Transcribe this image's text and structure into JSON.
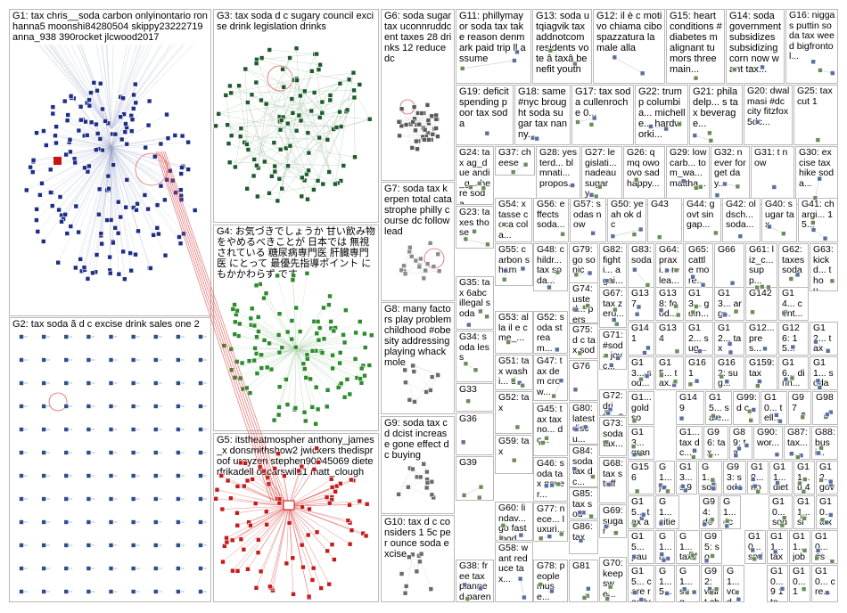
{
  "groups": [
    {
      "id": "G1",
      "text": "G1: tax chris__soda carbon onlyinontario ronhanna5 moonshi84280504 skippy23222719 anna_938 390rocket jlcwood2017",
      "color": "#1e2e86"
    },
    {
      "id": "G2",
      "text": "G2: tax soda ã d c excise drink sales one 2",
      "color": "#2d4e8a"
    },
    {
      "id": "G3",
      "text": "G3: tax soda d c sugary council excise drink legislation drinks",
      "color": "#1d5a2c"
    },
    {
      "id": "G4",
      "text": "G4: お気づきでしょうか 甘い飲み物をやめるべきことが 日本では 無視されている 糖尿病専門医 肝臓専門医 にとって 最優先指導ポイント にもかかわらず です",
      "color": "#2d8a2d"
    },
    {
      "id": "G5",
      "text": "G5: itstheatmospher anthony_james_x donsmithshow2 jwickers thedisproof ureyzen stephen90045069 dieterfrikadell oscarswild1 matt_clough",
      "color": "#d22020"
    },
    {
      "id": "G6",
      "text": "G6: soda sugar tax uconnruddcent taxes 28 drinks 12 reduce dc",
      "color": "#444444"
    },
    {
      "id": "G7",
      "text": "G7: soda tax kerpen total catastrophe philly course dc follow lead",
      "color": "#aaaaaa"
    },
    {
      "id": "G8",
      "text": "G8: many factors play problem childhood #obesity addressing playing whack mole",
      "color": "#777777"
    },
    {
      "id": "G9",
      "text": "G9: soda tax c d dcist increase gone effect dc buying",
      "color": "#777777"
    },
    {
      "id": "G10",
      "text": "G10: tax d c considers 1 5c per ounce soda excise",
      "color": "#777777"
    },
    {
      "id": "G11",
      "text": "G11: phillymayor soda tax take reason denmark paid trip ll assume",
      "color": "#777777"
    },
    {
      "id": "G13",
      "text": "G13: soda utqiagvik tax addnotcom residents vote â taxâ benefit youth",
      "color": "#777777"
    },
    {
      "id": "G12",
      "text": "G12: il è c motivo chiama cibo spazzatura la male alla",
      "color": "#777777"
    },
    {
      "id": "G15",
      "text": "G15: heart conditions #diabetes malignant tumors three main...",
      "color": "#777777"
    },
    {
      "id": "G14",
      "text": "G14: soda government subsidizes subsidizing corn now want tax...",
      "color": "#777777"
    },
    {
      "id": "G16",
      "text": "G16: niggas puttin soda tax weed bigfrontol...",
      "color": "#777777"
    },
    {
      "id": "G19",
      "text": "G19: deficit spending poor tax soda",
      "color": "#777777"
    },
    {
      "id": "G18",
      "text": "G18: same #nyc brought soda sugar tax nanny...",
      "color": "#777777"
    },
    {
      "id": "G17",
      "text": "G17: tax soda cullenroche 0...",
      "color": "#777777"
    },
    {
      "id": "G22",
      "text": "G22: trump columbia... michelle... hardworki...",
      "color": "#777777"
    },
    {
      "id": "G21",
      "text": "G21: philadelp... s tax beverage...",
      "color": "#777777"
    },
    {
      "id": "G20",
      "text": "G20: dwalmasi #dc city fitzfox5dc...",
      "color": "#777777"
    },
    {
      "id": "G25",
      "text": "G25: tax cut 1",
      "color": "#777777"
    },
    {
      "id": "G24",
      "text": "G24: tax ag_due andi_g... here soda...",
      "color": "#777777"
    },
    {
      "id": "G37",
      "text": "G37: cheese",
      "color": "#777777"
    },
    {
      "id": "G28",
      "text": "G28: yesterd... blmnati... propos...",
      "color": "#777777"
    },
    {
      "id": "G27",
      "text": "G27: legislati... nadeau sugary...",
      "color": "#777777"
    },
    {
      "id": "G26",
      "text": "G26: qmq owo ovo sad happy...",
      "color": "#777777"
    },
    {
      "id": "G29",
      "text": "G29: lowcarb... tom_wa... mattha...",
      "color": "#777777"
    },
    {
      "id": "G32",
      "text": "G32: never forget day...",
      "color": "#777777"
    },
    {
      "id": "G31",
      "text": "G31: t now",
      "color": "#777777"
    },
    {
      "id": "G30",
      "text": "G30: excise tax hike soda...",
      "color": "#777777"
    },
    {
      "id": "G54",
      "text": "G54: x tasse coca cola...",
      "color": "#777777"
    },
    {
      "id": "G56",
      "text": "G56: effects soda...",
      "color": "#777777"
    },
    {
      "id": "G57",
      "text": "G57: sodas now",
      "color": "#777777"
    },
    {
      "id": "G50",
      "text": "G50: yeah ok dc",
      "color": "#777777"
    },
    {
      "id": "G43",
      "text": "G43",
      "color": "#777777"
    },
    {
      "id": "G44",
      "text": "G44: govt singap...",
      "color": "#777777"
    },
    {
      "id": "G42",
      "text": "G42: oldsch... soda...",
      "color": "#777777"
    },
    {
      "id": "G40",
      "text": "G40: sugar tax",
      "color": "#777777"
    },
    {
      "id": "G41",
      "text": "G41: chargi... 15...",
      "color": "#777777"
    },
    {
      "id": "G23",
      "text": "G23: taxes those",
      "color": "#777777"
    },
    {
      "id": "G55",
      "text": "G55: carbon sham",
      "color": "#777777"
    },
    {
      "id": "G48",
      "text": "G48: childr... tax soda...",
      "color": "#777777"
    },
    {
      "id": "G79",
      "text": "G79: go sonic",
      "color": "#777777"
    },
    {
      "id": "G82",
      "text": "G82: fighti... agai...",
      "color": "#777777"
    },
    {
      "id": "G83",
      "text": "G83: soda",
      "color": "#777777"
    },
    {
      "id": "G64",
      "text": "G64: praxi... relea...",
      "color": "#777777"
    },
    {
      "id": "G65",
      "text": "G65: cattle more...",
      "color": "#777777"
    },
    {
      "id": "G66",
      "text": "G66",
      "color": "#777777"
    },
    {
      "id": "G61",
      "text": "G61: liz_c... supp...",
      "color": "#777777"
    },
    {
      "id": "G62",
      "text": "G62: taxes soda",
      "color": "#777777"
    },
    {
      "id": "G63",
      "text": "G63: kickd... thou...",
      "color": "#777777"
    },
    {
      "id": "G35",
      "text": "G35: tax 6abc illegal soda",
      "color": "#777777"
    },
    {
      "id": "G74",
      "text": "G74: usted... perso...",
      "color": "#777777"
    },
    {
      "id": "G67",
      "text": "G67: tax zero...",
      "color": "#777777"
    },
    {
      "id": "G137",
      "text": "G137",
      "color": "#777777"
    },
    {
      "id": "G138",
      "text": "G138: food...",
      "color": "#777777"
    },
    {
      "id": "G13x",
      "text": "G13... goin...",
      "color": "#777777"
    },
    {
      "id": "G13y",
      "text": "G13... arg...",
      "color": "#777777"
    },
    {
      "id": "G142",
      "text": "G142",
      "color": "#777777"
    },
    {
      "id": "G14x",
      "text": "G14... cont...",
      "color": "#777777"
    },
    {
      "id": "G53",
      "text": "G53: alla il e cme_...",
      "color": "#777777"
    },
    {
      "id": "G52",
      "text": "G52: soda stream...",
      "color": "#777777"
    },
    {
      "id": "G75",
      "text": "G75: d c tax soda...",
      "color": "#777777"
    },
    {
      "id": "G141",
      "text": "G141",
      "color": "#777777"
    },
    {
      "id": "G134",
      "text": "G134",
      "color": "#777777"
    },
    {
      "id": "G12x",
      "text": "G12... sug...",
      "color": "#777777"
    },
    {
      "id": "G12y",
      "text": "G12... tax",
      "color": "#777777"
    },
    {
      "id": "G12z",
      "text": "G12... pres...",
      "color": "#777777"
    },
    {
      "id": "G126",
      "text": "G126: 1 5...",
      "color": "#777777"
    },
    {
      "id": "G12w",
      "text": "G12... tax",
      "color": "#777777"
    },
    {
      "id": "G34",
      "text": "G34: soda less",
      "color": "#777777"
    },
    {
      "id": "G51",
      "text": "G51: tax washi... d c...",
      "color": "#777777"
    },
    {
      "id": "G71",
      "text": "G71: #soda joyc...",
      "color": "#777777"
    },
    {
      "id": "G13a",
      "text": "G13... sod...",
      "color": "#777777"
    },
    {
      "id": "G15a",
      "text": "G15... tax...",
      "color": "#777777"
    },
    {
      "id": "G161",
      "text": "G161",
      "color": "#777777"
    },
    {
      "id": "G162",
      "text": "G162: sug...",
      "color": "#777777"
    },
    {
      "id": "G159",
      "text": "G159: tax",
      "color": "#777777"
    },
    {
      "id": "G16a",
      "text": "G16... dinn...",
      "color": "#777777"
    },
    {
      "id": "G11a",
      "text": "G11... soda",
      "color": "#777777"
    },
    {
      "id": "G33",
      "text": "G33",
      "color": "#777777"
    },
    {
      "id": "G47",
      "text": "G47: tax dem crow...",
      "color": "#777777"
    },
    {
      "id": "G76",
      "text": "G76",
      "color": "#777777"
    },
    {
      "id": "G72",
      "text": "G72: drin... out",
      "color": "#777777"
    },
    {
      "id": "G1a",
      "text": "G1... gold sou...",
      "color": "#777777"
    },
    {
      "id": "G149",
      "text": "G149",
      "color": "#777777"
    },
    {
      "id": "G15b",
      "text": "G15... sale...",
      "color": "#777777"
    },
    {
      "id": "G99",
      "text": "G99: d c",
      "color": "#777777"
    },
    {
      "id": "G10a",
      "text": "G10... tell...",
      "color": "#777777"
    },
    {
      "id": "G97",
      "text": "G97",
      "color": "#777777"
    },
    {
      "id": "G98",
      "text": "G98",
      "color": "#777777"
    },
    {
      "id": "G52b",
      "text": "G52: tax",
      "color": "#777777"
    },
    {
      "id": "G45",
      "text": "G45: tax taxno... d c...",
      "color": "#777777"
    },
    {
      "id": "G80",
      "text": "G80: latest discu...",
      "color": "#777777"
    },
    {
      "id": "G73",
      "text": "G73: soda tax...",
      "color": "#777777"
    },
    {
      "id": "G13b",
      "text": "G13... grant",
      "color": "#777777"
    },
    {
      "id": "G1b",
      "text": "G1... tax d c...",
      "color": "#777777"
    },
    {
      "id": "G96",
      "text": "G96: tax...",
      "color": "#777777"
    },
    {
      "id": "G89",
      "text": "G89: tax...",
      "color": "#777777"
    },
    {
      "id": "G90",
      "text": "G90: wor...",
      "color": "#777777"
    },
    {
      "id": "G87",
      "text": "G87: tax...",
      "color": "#777777"
    },
    {
      "id": "G88",
      "text": "G88: busi...",
      "color": "#777777"
    },
    {
      "id": "G36",
      "text": "G36",
      "color": "#777777"
    },
    {
      "id": "G59",
      "text": "G59: tax",
      "color": "#777777"
    },
    {
      "id": "G84",
      "text": "G84: soda tax dc...",
      "color": "#777777"
    },
    {
      "id": "G156",
      "text": "G156",
      "color": "#777777"
    },
    {
      "id": "G1c",
      "text": "G1... je et co...",
      "color": "#777777"
    },
    {
      "id": "G13c",
      "text": "G13... s 95",
      "color": "#777777"
    },
    {
      "id": "G1d",
      "text": "G1... soda",
      "color": "#777777"
    },
    {
      "id": "G93",
      "text": "G93: sodau onc...",
      "color": "#777777"
    },
    {
      "id": "G10b",
      "text": "G10... now 9...",
      "color": "#777777"
    },
    {
      "id": "G11b",
      "text": "G11... diet soda",
      "color": "#777777"
    },
    {
      "id": "G11c",
      "text": "G11... u 4 writ...",
      "color": "#777777"
    },
    {
      "id": "G12v",
      "text": "G12... gov 1 4...",
      "color": "#777777"
    },
    {
      "id": "G46",
      "text": "G46: soda tax gover...",
      "color": "#777777"
    },
    {
      "id": "G68",
      "text": "G68: tax stuff",
      "color": "#777777"
    },
    {
      "id": "G39",
      "text": "G39",
      "color": "#777777"
    },
    {
      "id": "G85",
      "text": "G85: tax soda...",
      "color": "#777777"
    },
    {
      "id": "G15c",
      "text": "G15... tax ahe...",
      "color": "#777777"
    },
    {
      "id": "G1e",
      "text": "G1... cities nee...",
      "color": "#777777"
    },
    {
      "id": "G94",
      "text": "G94: dc",
      "color": "#777777"
    },
    {
      "id": "G1f",
      "text": "G1... dc",
      "color": "#777777"
    },
    {
      "id": "G10c",
      "text": "G10... soda",
      "color": "#777777"
    },
    {
      "id": "G11d",
      "text": "G11... sim... taxe...",
      "color": "#777777"
    },
    {
      "id": "G10d",
      "text": "G10... tax swit...",
      "color": "#777777"
    },
    {
      "id": "G60",
      "text": "G60: lindav... go fast food...",
      "color": "#777777"
    },
    {
      "id": "G69",
      "text": "G69: sugar",
      "color": "#777777"
    },
    {
      "id": "G77",
      "text": "G77: nece... luxuri...",
      "color": "#777777"
    },
    {
      "id": "G86",
      "text": "G86: tax",
      "color": "#777777"
    },
    {
      "id": "G15d",
      "text": "G15... paul... sur...",
      "color": "#777777"
    },
    {
      "id": "G1g",
      "text": "G1... 80...",
      "color": "#777777"
    },
    {
      "id": "G1h",
      "text": "G1... tax fast...",
      "color": "#777777"
    },
    {
      "id": "G95",
      "text": "G95: sou... #p...",
      "color": "#777777"
    },
    {
      "id": "G10e",
      "text": "G10... soda afic...",
      "color": "#777777"
    },
    {
      "id": "G11e",
      "text": "G11... tax spe...",
      "color": "#777777"
    },
    {
      "id": "G11f",
      "text": "G11... jobs dan...",
      "color": "#777777"
    },
    {
      "id": "G10f",
      "text": "G10... #so... #dc...",
      "color": "#777777"
    },
    {
      "id": "G38",
      "text": "G38: free tax planned parent...",
      "color": "#777777"
    },
    {
      "id": "G58",
      "text": "G58: want reduce tax...",
      "color": "#777777"
    },
    {
      "id": "G78",
      "text": "G78: people muse...",
      "color": "#777777"
    },
    {
      "id": "G81",
      "text": "G81",
      "color": "#777777"
    },
    {
      "id": "G70",
      "text": "G70: keep swe...",
      "color": "#777777"
    },
    {
      "id": "G15e",
      "text": "G15... care really",
      "color": "#777777"
    },
    {
      "id": "G1i",
      "text": "G1... 5...",
      "color": "#777777"
    },
    {
      "id": "G1j",
      "text": "G1... sug...",
      "color": "#777777"
    },
    {
      "id": "G92",
      "text": "G92: wait chi...",
      "color": "#777777"
    },
    {
      "id": "G1k",
      "text": "G1... vod...",
      "color": "#777777"
    },
    {
      "id": "G10g",
      "text": "G10... 9 1 top...",
      "color": "#777777"
    },
    {
      "id": "G10h",
      "text": "G10... 1",
      "color": "#777777"
    },
    {
      "id": "G10i",
      "text": "G10... cre...",
      "color": "#777777"
    }
  ]
}
